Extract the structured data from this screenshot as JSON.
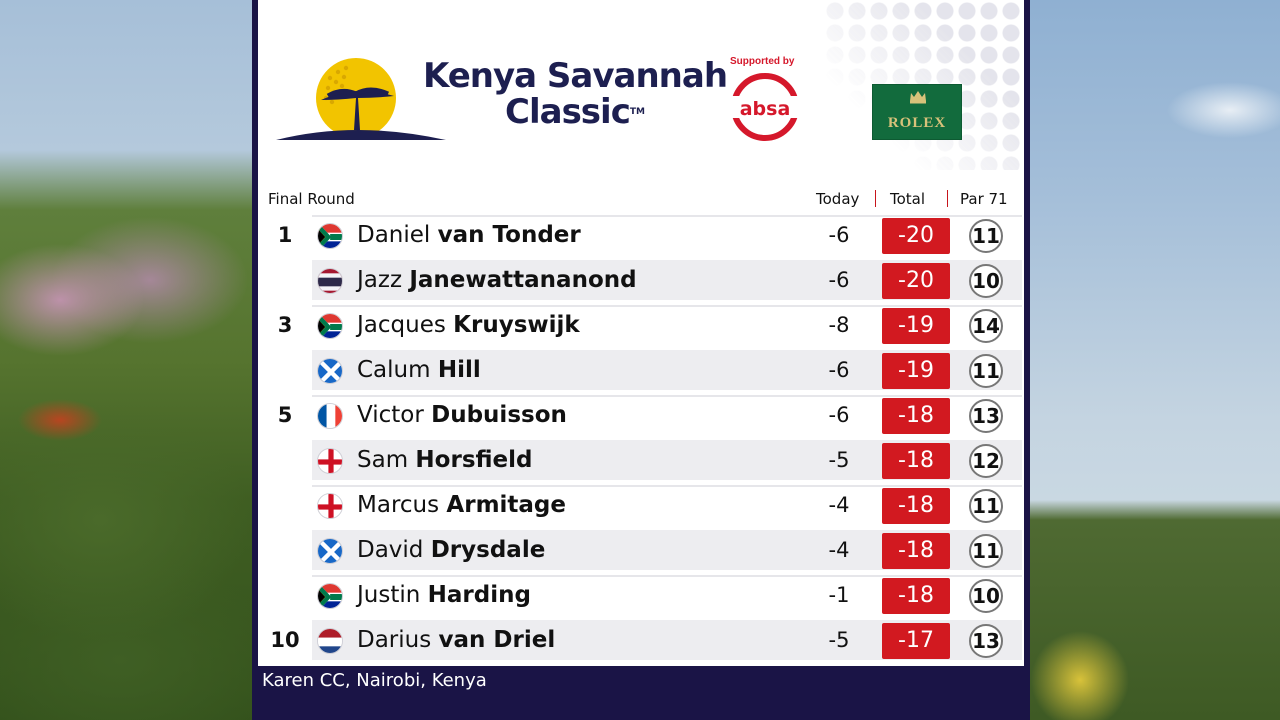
{
  "event": {
    "title_line1": "Kenya Savannah",
    "title_line2": "Classic",
    "trademark": "TM",
    "supported_by": "Supported by",
    "sponsor": "absa",
    "partner": "ROLEX"
  },
  "columns": {
    "round": "Final Round",
    "today": "Today",
    "total": "Total",
    "par": "Par 71"
  },
  "leaderboard": [
    {
      "pos": "1",
      "flag": "south-africa",
      "first": "Daniel",
      "last": "van Tonder",
      "today": "-6",
      "total": "-20",
      "thru": "11"
    },
    {
      "pos": "",
      "flag": "thailand",
      "first": "Jazz",
      "last": "Janewattananond",
      "today": "-6",
      "total": "-20",
      "thru": "10"
    },
    {
      "pos": "3",
      "flag": "south-africa",
      "first": "Jacques",
      "last": "Kruyswijk",
      "today": "-8",
      "total": "-19",
      "thru": "14"
    },
    {
      "pos": "",
      "flag": "scotland",
      "first": "Calum",
      "last": "Hill",
      "today": "-6",
      "total": "-19",
      "thru": "11"
    },
    {
      "pos": "5",
      "flag": "france",
      "first": "Victor",
      "last": "Dubuisson",
      "today": "-6",
      "total": "-18",
      "thru": "13"
    },
    {
      "pos": "",
      "flag": "england",
      "first": "Sam",
      "last": "Horsfield",
      "today": "-5",
      "total": "-18",
      "thru": "12"
    },
    {
      "pos": "",
      "flag": "england",
      "first": "Marcus",
      "last": "Armitage",
      "today": "-4",
      "total": "-18",
      "thru": "11"
    },
    {
      "pos": "",
      "flag": "scotland",
      "first": "David",
      "last": "Drysdale",
      "today": "-4",
      "total": "-18",
      "thru": "11"
    },
    {
      "pos": "",
      "flag": "south-africa",
      "first": "Justin",
      "last": "Harding",
      "today": "-1",
      "total": "-18",
      "thru": "10"
    },
    {
      "pos": "10",
      "flag": "netherlands",
      "first": "Darius",
      "last": "van Driel",
      "today": "-5",
      "total": "-17",
      "thru": "13"
    }
  ],
  "footer": {
    "venue": "Karen CC, Nairobi, Kenya"
  },
  "colors": {
    "navy": "#1a1446",
    "score_red": "#d21920",
    "title_navy": "#1d1f50",
    "rolex_green": "#126b3d"
  }
}
